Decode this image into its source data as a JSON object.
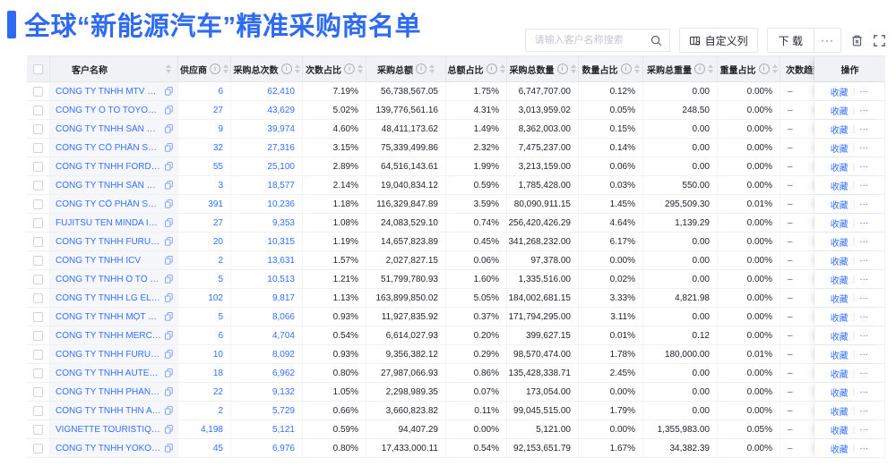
{
  "page": {
    "title": "全球“新能源汽车”精准采购商名单"
  },
  "colors": {
    "accent": "#2e6bf0",
    "link": "#3370ff"
  },
  "toolbar": {
    "search_placeholder": "请输入客户名称搜索",
    "customize_columns": "自定义列",
    "download": "下 载",
    "download_more": "···"
  },
  "table": {
    "columns": [
      {
        "key": "name",
        "label": "客户名称",
        "info": false,
        "sort": true
      },
      {
        "key": "suppliers",
        "label": "供应商",
        "info": true,
        "sort": true
      },
      {
        "key": "count",
        "label": "采购总次数",
        "info": true,
        "sort": true
      },
      {
        "key": "count_pct",
        "label": "次数占比",
        "info": true,
        "sort": true
      },
      {
        "key": "amount",
        "label": "采购总额",
        "info": true,
        "sort": true
      },
      {
        "key": "amount_pct",
        "label": "总额占比",
        "info": true,
        "sort": true
      },
      {
        "key": "qty",
        "label": "采购总数量",
        "info": true,
        "sort": true
      },
      {
        "key": "qty_pct",
        "label": "数量占比",
        "info": true,
        "sort": true
      },
      {
        "key": "weight",
        "label": "采购总重量",
        "info": true,
        "sort": true
      },
      {
        "key": "weight_pct",
        "label": "重量占比",
        "info": true,
        "sort": true
      },
      {
        "key": "trend",
        "label": "次数趋势",
        "info": false,
        "sort": false
      },
      {
        "key": "actions",
        "label": "操作",
        "info": false,
        "sort": false
      }
    ],
    "actions": {
      "favorite": "收藏",
      "more": "···"
    },
    "trend_placeholder": "–",
    "rows": [
      {
        "name": "CÔNG TY TNHH MTV SẢN XUẤ...",
        "suppliers": "6",
        "count": "62,410",
        "count_pct": "7.19%",
        "amount": "56,738,567.05",
        "amount_pct": "1.75%",
        "qty": "6,747,707.00",
        "qty_pct": "0.12%",
        "weight": "0.00",
        "weight_pct": "0.00%"
      },
      {
        "name": "CÔNG TY Ô TÔ TOYOTA VIỆT ...",
        "suppliers": "27",
        "count": "43,629",
        "count_pct": "5.02%",
        "amount": "139,776,561.16",
        "amount_pct": "4.31%",
        "qty": "3,013,959.02",
        "qty_pct": "0.05%",
        "weight": "248.50",
        "weight_pct": "0.00%"
      },
      {
        "name": "CÔNG TY TNHH SẢN XUẤT VÀ ...",
        "suppliers": "9",
        "count": "39,974",
        "count_pct": "4.60%",
        "amount": "48,411,173.62",
        "amount_pct": "1.49%",
        "qty": "8,362,003.00",
        "qty_pct": "0.15%",
        "weight": "0.00",
        "weight_pct": "0.00%"
      },
      {
        "name": "CÔNG TY CỔ PHẦN SẢN XUẤT...",
        "suppliers": "32",
        "count": "27,316",
        "count_pct": "3.15%",
        "amount": "75,339,499.86",
        "amount_pct": "2.32%",
        "qty": "7,475,237.00",
        "qty_pct": "0.14%",
        "weight": "0.00",
        "weight_pct": "0.00%"
      },
      {
        "name": "CÔNG TY TNHH FORD VIỆT NAM",
        "suppliers": "55",
        "count": "25,100",
        "count_pct": "2.89%",
        "amount": "64,516,143.61",
        "amount_pct": "1.99%",
        "qty": "3,213,159.00",
        "qty_pct": "0.06%",
        "weight": "0.00",
        "weight_pct": "0.00%"
      },
      {
        "name": "CÔNG TY TNHH SẢN XUẤT VÀ ...",
        "suppliers": "3",
        "count": "18,577",
        "count_pct": "2.14%",
        "amount": "19,040,834.12",
        "amount_pct": "0.59%",
        "qty": "1,785,428.00",
        "qty_pct": "0.03%",
        "weight": "550.00",
        "weight_pct": "0.00%"
      },
      {
        "name": "CÔNG TY CỔ PHẦN SẢN XUẤT...",
        "suppliers": "391",
        "count": "10,236",
        "count_pct": "1.18%",
        "amount": "116,329,847.89",
        "amount_pct": "3.59%",
        "qty": "80,090,911.15",
        "qty_pct": "1.45%",
        "weight": "295,509.30",
        "weight_pct": "0.01%"
      },
      {
        "name": "FUJITSU TEN MINDA INDIA PVT...",
        "suppliers": "27",
        "count": "9,353",
        "count_pct": "1.08%",
        "amount": "24,083,529.10",
        "amount_pct": "0.74%",
        "qty": "256,420,426.29",
        "qty_pct": "4.64%",
        "weight": "1,139.29",
        "weight_pct": "0.00%"
      },
      {
        "name": "CÔNG TY TNHH FURUKAWA A...",
        "suppliers": "20",
        "count": "10,315",
        "count_pct": "1.19%",
        "amount": "14,657,823.89",
        "amount_pct": "0.45%",
        "qty": "341,268,232.00",
        "qty_pct": "6.17%",
        "weight": "0.00",
        "weight_pct": "0.00%"
      },
      {
        "name": "CÔNG TY TNHH ICV",
        "suppliers": "2",
        "count": "13,631",
        "count_pct": "1.57%",
        "amount": "2,027,827.15",
        "amount_pct": "0.06%",
        "qty": "97,378.00",
        "qty_pct": "0.00%",
        "weight": "0.00",
        "weight_pct": "0.00%"
      },
      {
        "name": "CÔNG TY TNHH Ô TÔ MITSUBI...",
        "suppliers": "5",
        "count": "10,513",
        "count_pct": "1.21%",
        "amount": "51,799,780.93",
        "amount_pct": "1.60%",
        "qty": "1,335,516.00",
        "qty_pct": "0.02%",
        "weight": "0.00",
        "weight_pct": "0.00%"
      },
      {
        "name": "CÔNG TY TNHH LG ELECTRON...",
        "suppliers": "102",
        "count": "9,817",
        "count_pct": "1.13%",
        "amount": "163,899,850.02",
        "amount_pct": "5.05%",
        "qty": "184,002,681.15",
        "qty_pct": "3.33%",
        "weight": "4,821.98",
        "weight_pct": "0.00%"
      },
      {
        "name": "CÔNG TY TNHH MỘT THÀNH V...",
        "suppliers": "5",
        "count": "8,066",
        "count_pct": "0.93%",
        "amount": "11,927,835.92",
        "amount_pct": "0.37%",
        "qty": "171,794,295.00",
        "qty_pct": "3.11%",
        "weight": "0.00",
        "weight_pct": "0.00%"
      },
      {
        "name": "CÔNG TY TNHH MERCEDES-B...",
        "suppliers": "6",
        "count": "4,704",
        "count_pct": "0.54%",
        "amount": "6,614,027.93",
        "amount_pct": "0.20%",
        "qty": "399,627.15",
        "qty_pct": "0.01%",
        "weight": "0.12",
        "weight_pct": "0.00%"
      },
      {
        "name": "CÔNG TY TNHH FURUKAWA A...",
        "suppliers": "10",
        "count": "8,092",
        "count_pct": "0.93%",
        "amount": "9,356,382.12",
        "amount_pct": "0.29%",
        "qty": "98,570,474.00",
        "qty_pct": "1.78%",
        "weight": "180,000.00",
        "weight_pct": "0.01%"
      },
      {
        "name": "CÔNG TY TNHH AUTEL VIỆT N...",
        "suppliers": "18",
        "count": "6,962",
        "count_pct": "0.80%",
        "amount": "27,987,066.93",
        "amount_pct": "0.86%",
        "qty": "135,428,338.71",
        "qty_pct": "2.45%",
        "weight": "0.00",
        "weight_pct": "0.00%"
      },
      {
        "name": "CÔNG TY TNHH PHÂN PHỐI T...",
        "suppliers": "22",
        "count": "9,132",
        "count_pct": "1.05%",
        "amount": "2,298,989.35",
        "amount_pct": "0.07%",
        "qty": "173,054.00",
        "qty_pct": "0.00%",
        "weight": "0.00",
        "weight_pct": "0.00%"
      },
      {
        "name": "CÔNG TY TNHH THN AUTOPAR...",
        "suppliers": "2",
        "count": "5,729",
        "count_pct": "0.66%",
        "amount": "3,660,823.82",
        "amount_pct": "0.11%",
        "qty": "99,045,515.00",
        "qty_pct": "1.79%",
        "weight": "0.00",
        "weight_pct": "0.00%"
      },
      {
        "name": "VIGNETTE TOURISTIQUE G UNI...",
        "suppliers": "4,198",
        "count": "5,121",
        "count_pct": "0.59%",
        "amount": "94,407.29",
        "amount_pct": "0.00%",
        "qty": "5,121.00",
        "qty_pct": "0.00%",
        "weight": "1,355,983.00",
        "weight_pct": "0.05%"
      },
      {
        "name": "CÔNG TY TNHH YOKOWO VIỆT...",
        "suppliers": "45",
        "count": "6,976",
        "count_pct": "0.80%",
        "amount": "17,433,000.11",
        "amount_pct": "0.54%",
        "qty": "92,153,651.79",
        "qty_pct": "1.67%",
        "weight": "34,382.39",
        "weight_pct": "0.00%"
      }
    ]
  }
}
